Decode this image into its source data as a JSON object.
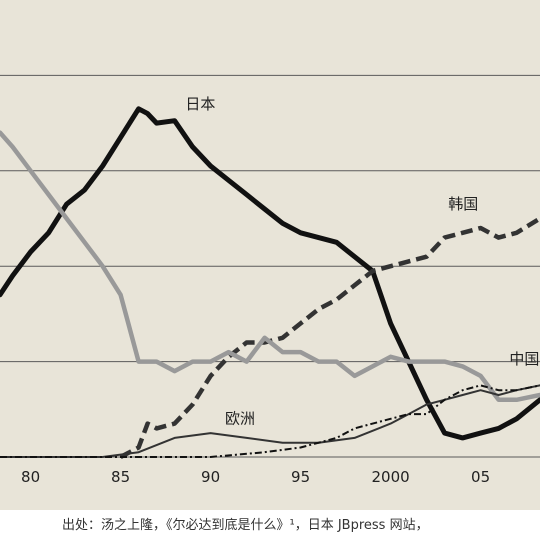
{
  "chart_data": {
    "type": "line",
    "xlim": [
      1978.3,
      2008.3
    ],
    "ylim": [
      0,
      100
    ],
    "ytick_values": [
      0,
      20,
      40,
      60,
      80,
      100
    ],
    "xticks": [
      {
        "value": 1980,
        "label": "80"
      },
      {
        "value": 1985,
        "label": "85"
      },
      {
        "value": 1990,
        "label": "90"
      },
      {
        "value": 1995,
        "label": "95"
      },
      {
        "value": 2000,
        "label": "2000"
      },
      {
        "value": 2005,
        "label": "05"
      }
    ],
    "grid": "horizontal",
    "series": [
      {
        "name": "日本",
        "color": "#111111",
        "style": "solid",
        "width": 5,
        "points": [
          [
            1978.3,
            34
          ],
          [
            1979,
            38
          ],
          [
            1980,
            43
          ],
          [
            1981,
            47
          ],
          [
            1982,
            53
          ],
          [
            1983,
            56
          ],
          [
            1984,
            61
          ],
          [
            1985,
            67
          ],
          [
            1986,
            73
          ],
          [
            1986.5,
            72
          ],
          [
            1987,
            70
          ],
          [
            1988,
            70.5
          ],
          [
            1989,
            65
          ],
          [
            1990,
            61
          ],
          [
            1991,
            58
          ],
          [
            1992,
            55
          ],
          [
            1993,
            52
          ],
          [
            1994,
            49
          ],
          [
            1995,
            47
          ],
          [
            1996,
            46
          ],
          [
            1997,
            45
          ],
          [
            1998,
            42
          ],
          [
            1999,
            39
          ],
          [
            2000,
            28
          ],
          [
            2001,
            20
          ],
          [
            2002,
            12
          ],
          [
            2003,
            5
          ],
          [
            2004,
            4
          ],
          [
            2005,
            5
          ],
          [
            2006,
            6
          ],
          [
            2007,
            8
          ],
          [
            2008.3,
            12
          ]
        ]
      },
      {
        "name": "韩国",
        "color": "#333333",
        "style": "dashed",
        "width": 4.5,
        "points": [
          [
            1985,
            0
          ],
          [
            1986,
            2
          ],
          [
            1986.5,
            7
          ],
          [
            1987,
            6
          ],
          [
            1988,
            7
          ],
          [
            1989,
            11
          ],
          [
            1990,
            17
          ],
          [
            1991,
            21
          ],
          [
            1992,
            24
          ],
          [
            1993,
            24
          ],
          [
            1994,
            25
          ],
          [
            1995,
            28
          ],
          [
            1996,
            31
          ],
          [
            1997,
            33
          ],
          [
            1998,
            36
          ],
          [
            1999,
            39
          ],
          [
            2000,
            40
          ],
          [
            2001,
            41
          ],
          [
            2002,
            42
          ],
          [
            2003,
            46
          ],
          [
            2004,
            47
          ],
          [
            2005,
            48
          ],
          [
            2006,
            46
          ],
          [
            2007,
            47
          ],
          [
            2008.3,
            50
          ]
        ]
      },
      {
        "name": "中国",
        "color": "#999999",
        "style": "solid",
        "width": 4.5,
        "points": [
          [
            1978.3,
            68
          ],
          [
            1979,
            65
          ],
          [
            1980,
            60
          ],
          [
            1981,
            55
          ],
          [
            1982,
            50
          ],
          [
            1983,
            45
          ],
          [
            1984,
            40
          ],
          [
            1985,
            34
          ],
          [
            1986,
            20
          ],
          [
            1987,
            20
          ],
          [
            1988,
            18
          ],
          [
            1989,
            20
          ],
          [
            1990,
            20
          ],
          [
            1991,
            22
          ],
          [
            1992,
            20
          ],
          [
            1993,
            25
          ],
          [
            1994,
            22
          ],
          [
            1995,
            22
          ],
          [
            1996,
            20
          ],
          [
            1997,
            20
          ],
          [
            1998,
            17
          ],
          [
            1999,
            19
          ],
          [
            2000,
            21
          ],
          [
            2001,
            20
          ],
          [
            2002,
            20
          ],
          [
            2003,
            20
          ],
          [
            2004,
            19
          ],
          [
            2005,
            17
          ],
          [
            2006,
            12
          ],
          [
            2007,
            12
          ],
          [
            2008.3,
            13
          ]
        ]
      },
      {
        "name": "欧洲",
        "color": "#333333",
        "style": "solid",
        "width": 2,
        "points": [
          [
            1978.3,
            0
          ],
          [
            1984,
            0
          ],
          [
            1986,
            1
          ],
          [
            1988,
            4
          ],
          [
            1990,
            5
          ],
          [
            1992,
            4
          ],
          [
            1994,
            3
          ],
          [
            1996,
            3
          ],
          [
            1998,
            4
          ],
          [
            2000,
            7
          ],
          [
            2001,
            9
          ],
          [
            2002,
            11
          ],
          [
            2003,
            12
          ],
          [
            2004,
            13
          ],
          [
            2005,
            14
          ],
          [
            2006,
            13
          ],
          [
            2007,
            14
          ],
          [
            2008.3,
            15
          ]
        ]
      },
      {
        "name": "",
        "color": "#111111",
        "style": "dashdot",
        "width": 2,
        "points": [
          [
            1978.3,
            0
          ],
          [
            1990,
            0
          ],
          [
            1993,
            1
          ],
          [
            1995,
            2
          ],
          [
            1997,
            4
          ],
          [
            1998,
            6
          ],
          [
            2000,
            8
          ],
          [
            2001,
            9
          ],
          [
            2002,
            9
          ],
          [
            2003,
            12
          ],
          [
            2004,
            14
          ],
          [
            2005,
            15
          ],
          [
            2006,
            14
          ],
          [
            2007,
            14
          ],
          [
            2008.3,
            15
          ]
        ]
      }
    ],
    "series_labels": [
      {
        "text": "日本",
        "value_x": 1988.6,
        "value_y": 73
      },
      {
        "text": "韩国",
        "value_x": 2003.2,
        "value_y": 52
      },
      {
        "text": "中国",
        "value_x": 2006.6,
        "value_y": 19.5
      },
      {
        "text": "欧洲",
        "value_x": 1990.8,
        "value_y": 7
      }
    ]
  },
  "source_text": "出处：汤之上隆，《尔必达到底是什么》¹，日本 JBpress 网站，"
}
